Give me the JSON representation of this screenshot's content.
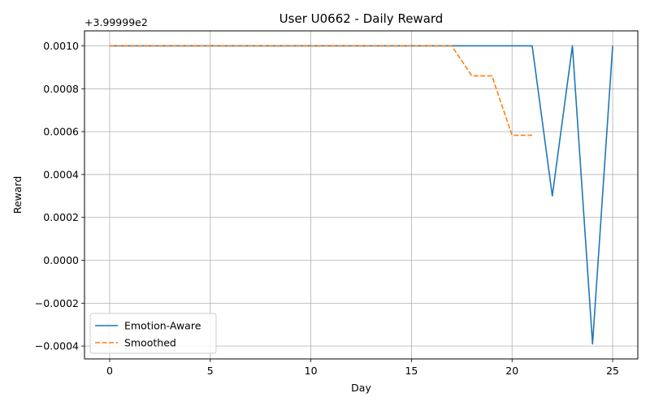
{
  "chart_data": {
    "type": "line",
    "title": "User U0662 - Daily Reward",
    "xlabel": "Day",
    "ylabel": "Reward",
    "y_offset_label": "+3.99999e2",
    "xlim": [
      -1.25,
      26.25
    ],
    "ylim": [
      -0.00046,
      0.00107
    ],
    "x_ticks": [
      0,
      5,
      10,
      15,
      20,
      25
    ],
    "x_tick_labels": [
      "0",
      "5",
      "10",
      "15",
      "20",
      "25"
    ],
    "y_ticks": [
      -0.0004,
      -0.0002,
      0.0,
      0.0002,
      0.0004,
      0.0006,
      0.0008,
      0.001
    ],
    "y_tick_labels": [
      "−0.0004",
      "−0.0002",
      "0.0000",
      "0.0002",
      "0.0004",
      "0.0006",
      "0.0008",
      "0.0010"
    ],
    "grid": true,
    "legend_position": "lower-left",
    "series": [
      {
        "name": "Emotion-Aware",
        "color": "#1f77b4",
        "style": "solid",
        "x": [
          0,
          1,
          2,
          3,
          4,
          5,
          6,
          7,
          8,
          9,
          10,
          11,
          12,
          13,
          14,
          15,
          16,
          17,
          18,
          19,
          20,
          21,
          22,
          23,
          24,
          25
        ],
        "y": [
          0.001,
          0.001,
          0.001,
          0.001,
          0.001,
          0.001,
          0.001,
          0.001,
          0.001,
          0.001,
          0.001,
          0.001,
          0.001,
          0.001,
          0.001,
          0.001,
          0.001,
          0.001,
          0.001,
          0.001,
          0.001,
          0.001,
          0.0003,
          0.001,
          -0.00039,
          0.001
        ]
      },
      {
        "name": "Smoothed",
        "color": "#ff7f0e",
        "style": "dashed",
        "x": [
          0,
          1,
          2,
          3,
          4,
          5,
          6,
          7,
          8,
          9,
          10,
          11,
          12,
          13,
          14,
          15,
          16,
          17,
          18,
          19,
          20,
          21
        ],
        "y": [
          0.001,
          0.001,
          0.001,
          0.001,
          0.001,
          0.001,
          0.001,
          0.001,
          0.001,
          0.001,
          0.001,
          0.001,
          0.001,
          0.001,
          0.001,
          0.001,
          0.001,
          0.001,
          0.00086,
          0.00086,
          0.000583,
          0.000583
        ]
      }
    ]
  }
}
